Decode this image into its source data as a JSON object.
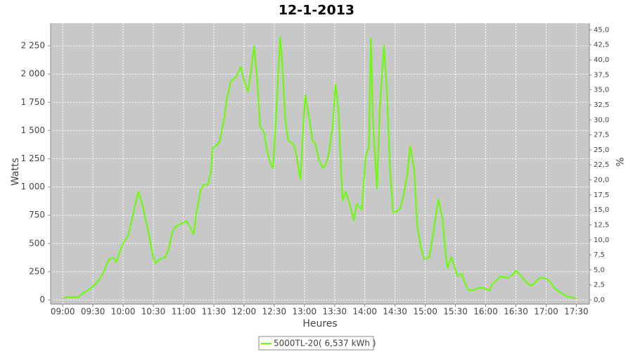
{
  "chart_data": {
    "type": "line",
    "title": "12-1-2013",
    "xlabel": "Heures",
    "ylabel": "Watts",
    "y2label": "%",
    "x": [
      "09:00",
      "09:04",
      "09:15",
      "09:22",
      "09:29",
      "09:36",
      "09:41",
      "09:46",
      "09:50",
      "09:53",
      "10:00",
      "10:05",
      "10:09",
      "10:13",
      "10:15",
      "10:19",
      "10:22",
      "10:26",
      "10:29",
      "10:32",
      "10:36",
      "10:42",
      "10:45",
      "10:49",
      "10:52",
      "10:58",
      "11:03",
      "11:06",
      "11:10",
      "11:13",
      "11:17",
      "11:20",
      "11:24",
      "11:27",
      "11:29",
      "11:34",
      "11:36",
      "11:40",
      "11:43",
      "11:47",
      "11:52",
      "11:57",
      "12:00",
      "12:04",
      "12:07",
      "12:10",
      "12:13",
      "12:16",
      "12:20",
      "12:23",
      "12:27",
      "12:29",
      "12:32",
      "12:36",
      "12:38",
      "12:41",
      "12:44",
      "12:49",
      "12:52",
      "12:56",
      "12:59",
      "13:01",
      "13:05",
      "13:08",
      "13:11",
      "13:14",
      "13:18",
      "13:21",
      "13:24",
      "13:28",
      "13:31",
      "13:34",
      "13:36",
      "13:38",
      "13:41",
      "13:45",
      "13:49",
      "13:52",
      "13:57",
      "14:01",
      "14:04",
      "14:06",
      "14:08",
      "14:12",
      "14:15",
      "14:19",
      "14:22",
      "14:25",
      "14:28",
      "14:32",
      "14:35",
      "14:38",
      "14:42",
      "14:45",
      "14:49",
      "14:52",
      "14:56",
      "14:59",
      "15:04",
      "15:07",
      "15:11",
      "15:13",
      "15:17",
      "15:20",
      "15:22",
      "15:26",
      "15:29",
      "15:32",
      "15:36",
      "15:39",
      "15:43",
      "15:47",
      "15:51",
      "15:56",
      "15:59",
      "16:04",
      "16:06",
      "16:11",
      "16:15",
      "16:19",
      "16:22",
      "16:27",
      "16:30",
      "16:34",
      "16:38",
      "16:43",
      "16:46",
      "16:50",
      "16:53",
      "16:58",
      "17:01",
      "17:05",
      "17:09",
      "17:13",
      "17:20",
      "17:25",
      "17:30"
    ],
    "series": [
      {
        "name": "5000TL-20( 6,537 kWh )",
        "color": "#66ff00",
        "values": [
          12,
          25,
          25,
          70,
          110,
          175,
          255,
          360,
          375,
          335,
          505,
          565,
          725,
          880,
          960,
          850,
          725,
          565,
          410,
          325,
          360,
          380,
          445,
          600,
          650,
          675,
          700,
          650,
          585,
          785,
          975,
          1020,
          1020,
          1130,
          1345,
          1380,
          1410,
          1595,
          1785,
          1940,
          1970,
          2065,
          1940,
          1845,
          2030,
          2245,
          1970,
          1535,
          1485,
          1315,
          1190,
          1170,
          1660,
          2330,
          2095,
          1595,
          1410,
          1380,
          1285,
          1065,
          1565,
          1815,
          1595,
          1410,
          1380,
          1255,
          1170,
          1190,
          1285,
          1535,
          1910,
          1660,
          1220,
          880,
          960,
          850,
          705,
          850,
          800,
          1285,
          1345,
          2320,
          1595,
          985,
          1720,
          2250,
          1845,
          1160,
          775,
          785,
          810,
          910,
          1095,
          1360,
          1160,
          660,
          445,
          360,
          380,
          535,
          775,
          890,
          725,
          425,
          285,
          380,
          300,
          210,
          235,
          160,
          85,
          85,
          100,
          110,
          100,
          85,
          135,
          175,
          210,
          200,
          195,
          225,
          260,
          225,
          185,
          135,
          130,
          160,
          195,
          195,
          185,
          150,
          100,
          75,
          35,
          25,
          12
        ]
      }
    ],
    "xlim": [
      "08:48",
      "17:43"
    ],
    "xticks": [
      "09:00",
      "09:30",
      "10:00",
      "10:30",
      "11:00",
      "11:30",
      "12:00",
      "12:30",
      "13:00",
      "13:30",
      "14:00",
      "14:30",
      "15:00",
      "15:30",
      "16:00",
      "16:30",
      "17:00",
      "17:30"
    ],
    "ylim": [
      -37,
      2450
    ],
    "yticks": [
      0,
      250,
      500,
      750,
      {
        "value": 1000,
        "label": "1 000"
      },
      {
        "value": 1250,
        "label": "1 250"
      },
      {
        "value": 1500,
        "label": "1 500"
      },
      {
        "value": 1750,
        "label": "1 750"
      },
      {
        "value": 2000,
        "label": "2 000"
      },
      {
        "value": 2250,
        "label": "2 250"
      }
    ],
    "y2lim": [
      -0.7,
      46.1
    ],
    "y2ticks": [
      {
        "value": 0,
        "label": "0,0"
      },
      {
        "value": 2.5,
        "label": "2,5"
      },
      {
        "value": 5,
        "label": "5,0"
      },
      {
        "value": 7.5,
        "label": "7,5"
      },
      {
        "value": 10,
        "label": "10,0"
      },
      {
        "value": 12.5,
        "label": "12,5"
      },
      {
        "value": 15,
        "label": "15,0"
      },
      {
        "value": 17.5,
        "label": "17,5"
      },
      {
        "value": 20,
        "label": "20,0"
      },
      {
        "value": 22.5,
        "label": "22,5"
      },
      {
        "value": 25,
        "label": "25,0"
      },
      {
        "value": 27.5,
        "label": "27,5"
      },
      {
        "value": 30,
        "label": "30,0"
      },
      {
        "value": 32.5,
        "label": "32,5"
      },
      {
        "value": 35,
        "label": "35,0"
      },
      {
        "value": 37.5,
        "label": "37,5"
      },
      {
        "value": 40,
        "label": "40,0"
      },
      {
        "value": 42.5,
        "label": "42,5"
      },
      {
        "value": 45,
        "label": "45,0"
      }
    ],
    "grid": true
  }
}
